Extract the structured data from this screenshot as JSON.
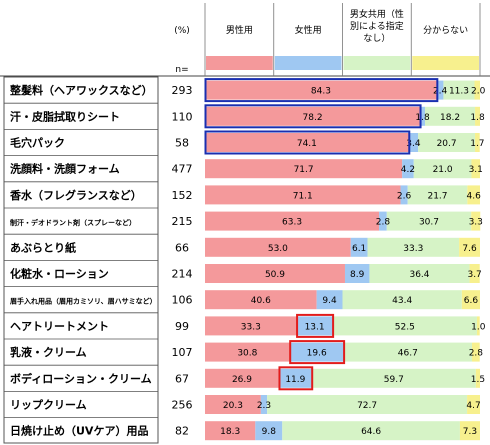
{
  "chart_data": {
    "type": "bar",
    "stacked": true,
    "percent_header": "(%)",
    "n_header": "n=",
    "series": [
      {
        "name": "男性用",
        "color": "#f4999b",
        "header_lines": [
          "男性用"
        ]
      },
      {
        "name": "女性用",
        "color": "#9fc8f2",
        "header_lines": [
          "女性用"
        ]
      },
      {
        "name": "男女共用（性別による指定なし）",
        "color": "#d6f3c6",
        "header_lines": [
          "男女共用（性",
          "別による指定",
          "なし）"
        ]
      },
      {
        "name": "分からない",
        "color": "#f7f08e",
        "header_lines": [
          "分からない"
        ]
      }
    ],
    "categories": [
      {
        "label": "整髪料（ヘアワックスなど）",
        "n": "293",
        "values": [
          84.3,
          2.4,
          11.3,
          2.0
        ],
        "value_labels": [
          "84.3",
          "2.4",
          "11.3",
          "2.0"
        ],
        "highlight": 0
      },
      {
        "label": "汗・皮脂拭取りシート",
        "n": "110",
        "values": [
          78.2,
          1.8,
          18.2,
          1.8
        ],
        "value_labels": [
          "78.2",
          "1.8",
          "18.2",
          "1.8"
        ],
        "highlight": 0
      },
      {
        "label": "毛穴パック",
        "n": "58",
        "values": [
          74.1,
          3.4,
          20.7,
          1.7
        ],
        "value_labels": [
          "74.1",
          "3.4",
          "20.7",
          "1.7"
        ],
        "highlight": 0
      },
      {
        "label": "洗顔料・洗顔フォーム",
        "n": "477",
        "values": [
          71.7,
          4.2,
          21.0,
          3.1
        ],
        "value_labels": [
          "71.7",
          "4.2",
          "21.0",
          "3.1"
        ]
      },
      {
        "label": "香水（フレグランスなど）",
        "n": "152",
        "values": [
          71.1,
          2.6,
          21.7,
          4.6
        ],
        "value_labels": [
          "71.1",
          "2.6",
          "21.7",
          "4.6"
        ]
      },
      {
        "label": "制汗・デオドラント剤（スプレーなど）",
        "n": "215",
        "values": [
          63.3,
          2.8,
          30.7,
          3.3
        ],
        "value_labels": [
          "63.3",
          "2.8",
          "30.7",
          "3.3"
        ],
        "small": true
      },
      {
        "label": "あぶらとり紙",
        "n": "66",
        "values": [
          53.0,
          6.1,
          33.3,
          7.6
        ],
        "value_labels": [
          "53.0",
          "6.1",
          "33.3",
          "7.6"
        ]
      },
      {
        "label": "化粧水・ローション",
        "n": "214",
        "values": [
          50.9,
          8.9,
          36.4,
          3.7
        ],
        "value_labels": [
          "50.9",
          "8.9",
          "36.4",
          "3.7"
        ]
      },
      {
        "label": "眉手入れ用品（眉用カミソリ、眉ハサミなど）",
        "n": "106",
        "values": [
          40.6,
          9.4,
          43.4,
          6.6
        ],
        "value_labels": [
          "40.6",
          "9.4",
          "43.4",
          "6.6"
        ],
        "small": true
      },
      {
        "label": "ヘアトリートメント",
        "n": "99",
        "values": [
          33.3,
          13.1,
          52.5,
          1.0
        ],
        "value_labels": [
          "33.3",
          "13.1",
          "52.5",
          "1.0"
        ],
        "highlight": 1
      },
      {
        "label": "乳液・クリーム",
        "n": "107",
        "values": [
          30.8,
          19.6,
          46.7,
          2.8
        ],
        "value_labels": [
          "30.8",
          "19.6",
          "46.7",
          "2.8"
        ],
        "highlight": 1
      },
      {
        "label": "ボディローション・クリーム",
        "n": "67",
        "values": [
          26.9,
          11.9,
          59.7,
          1.5
        ],
        "value_labels": [
          "26.9",
          "11.9",
          "59.7",
          "1.5"
        ],
        "highlight": 1
      },
      {
        "label": "リップクリーム",
        "n": "256",
        "values": [
          20.3,
          2.3,
          72.7,
          4.7
        ],
        "value_labels": [
          "20.3",
          "2.3",
          "72.7",
          "4.7"
        ]
      },
      {
        "label": "日焼け止め（UVケア）用品",
        "n": "82",
        "values": [
          18.3,
          9.8,
          64.6,
          7.3
        ],
        "value_labels": [
          "18.3",
          "9.8",
          "64.6",
          "7.3"
        ]
      }
    ],
    "xlim": [
      0,
      100
    ],
    "highlight_colors": [
      "#1a2fb0",
      "#e21c1c"
    ],
    "grid": false,
    "legend": "top"
  }
}
